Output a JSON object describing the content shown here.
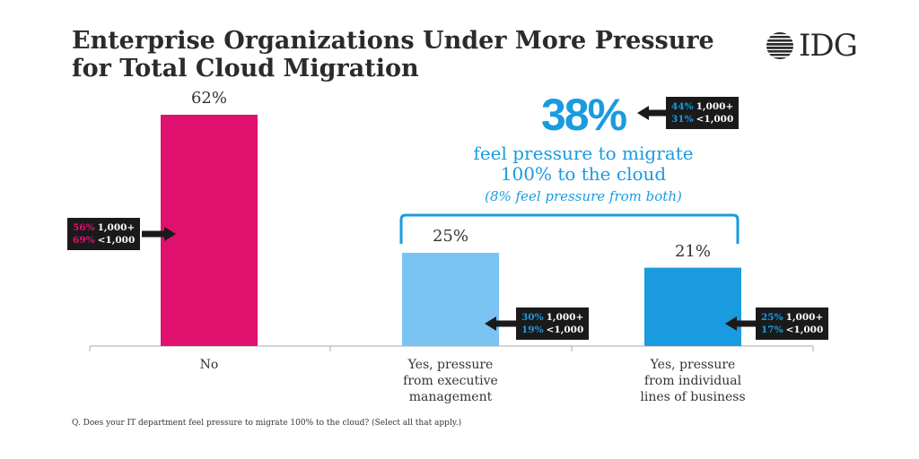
{
  "title": {
    "line1": "Enterprise Organizations Under More Pressure",
    "line2": "for Total Cloud Migration"
  },
  "logo": {
    "text": "IDG",
    "icon": "globe-lines-icon"
  },
  "colors": {
    "no": "#e0106e",
    "exec": "#79c4f2",
    "lob": "#1a9be0",
    "callout_bg": "#1a1a1a",
    "accent": "#1a9be0"
  },
  "chart_data": {
    "type": "bar",
    "categories": [
      "No",
      "Yes, pressure from executive management",
      "Yes, pressure from individual lines of business"
    ],
    "values": [
      62,
      25,
      21
    ],
    "value_labels": [
      "62%",
      "25%",
      "21%"
    ],
    "title": "Enterprise Organizations Under More Pressure for Total Cloud Migration",
    "xlabel": "",
    "ylabel": "",
    "ylim": [
      0,
      62
    ],
    "grid": false,
    "legend": "none"
  },
  "categories_display": [
    [
      "No"
    ],
    [
      "Yes, pressure",
      "from executive",
      "management"
    ],
    [
      "Yes, pressure",
      "from individual",
      "lines of business"
    ]
  ],
  "callouts": [
    {
      "bar": 0,
      "lines": [
        {
          "pct": "56%",
          "text": "1,000+"
        },
        {
          "pct": "69%",
          "text": "<1,000"
        }
      ],
      "pct_color": "#e0106e"
    },
    {
      "bar": 1,
      "lines": [
        {
          "pct": "30%",
          "text": "1,000+"
        },
        {
          "pct": "19%",
          "text": "<1,000"
        }
      ],
      "pct_color": "#1a9be0"
    },
    {
      "bar": 2,
      "lines": [
        {
          "pct": "25%",
          "text": "1,000+"
        },
        {
          "pct": "17%",
          "text": "<1,000"
        }
      ],
      "pct_color": "#1a9be0"
    }
  ],
  "highlight": {
    "value": "38%",
    "text_line1": "feel pressure to migrate",
    "text_line2": "100% to the cloud",
    "note": "(8% feel pressure from both)",
    "callout": {
      "lines": [
        {
          "pct": "44%",
          "text": "1,000+"
        },
        {
          "pct": "31%",
          "text": "<1,000"
        }
      ],
      "pct_color": "#1a9be0"
    }
  },
  "footnote": "Q. Does your IT department feel pressure to migrate 100% to the cloud? (Select all that apply.)"
}
